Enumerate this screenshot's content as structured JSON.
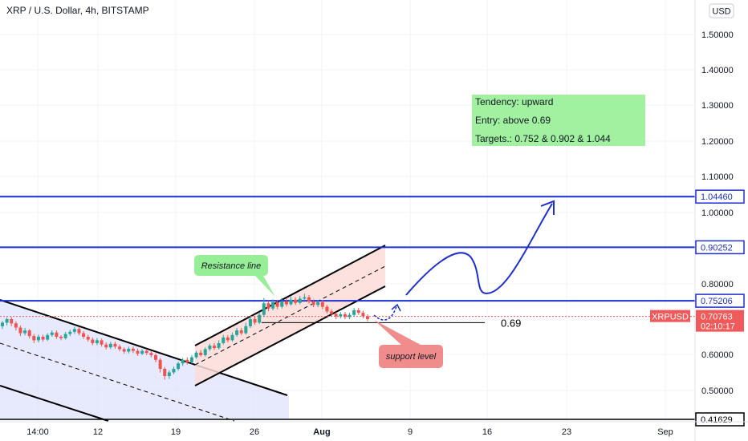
{
  "header": {
    "title": "XRP / U.S. Dollar, 4h, BITSTAMP",
    "currency_button": "USD"
  },
  "chart_data": {
    "type": "candlestick",
    "symbol": "XRPUSD",
    "y_ticks": [
      "1.50000",
      "1.40000",
      "1.30000",
      "1.20000",
      "1.10000",
      "1.00000",
      "0.80000",
      "0.60000",
      "0.50000"
    ],
    "y_tick_values": [
      1.5,
      1.4,
      1.3,
      1.2,
      1.1,
      1.0,
      0.8,
      0.6,
      0.5
    ],
    "ylim": [
      0.41,
      1.56
    ],
    "x_ticks": [
      "14:00",
      "12",
      "19",
      "26",
      "Aug",
      "9",
      "16",
      "23",
      "Sep"
    ],
    "price_levels": [
      {
        "label": "1.04460",
        "value": 1.0446,
        "color": "#1e2fd0"
      },
      {
        "label": "0.90252",
        "value": 0.90252,
        "color": "#1e2fd0"
      },
      {
        "label": "0.75206",
        "value": 0.75206,
        "color": "#1e2fd0"
      },
      {
        "label": "0.41629",
        "value": 0.41629,
        "color": "#000000"
      }
    ],
    "current_price": {
      "symbol": "XRPUSD",
      "price": "0.70763",
      "countdown": "02:10:17",
      "value": 0.70763,
      "color": "#f05a5a"
    },
    "support_value": {
      "label": "0.69",
      "value": 0.69
    },
    "candles": [
      [
        0.68,
        0.69,
        0.695,
        0.672
      ],
      [
        0.69,
        0.7,
        0.705,
        0.682
      ],
      [
        0.7,
        0.688,
        0.706,
        0.68
      ],
      [
        0.688,
        0.676,
        0.694,
        0.668
      ],
      [
        0.676,
        0.66,
        0.682,
        0.652
      ],
      [
        0.66,
        0.668,
        0.675,
        0.654
      ],
      [
        0.668,
        0.652,
        0.672,
        0.645
      ],
      [
        0.652,
        0.64,
        0.658,
        0.632
      ],
      [
        0.64,
        0.65,
        0.656,
        0.634
      ],
      [
        0.65,
        0.642,
        0.656,
        0.636
      ],
      [
        0.642,
        0.655,
        0.66,
        0.638
      ],
      [
        0.655,
        0.662,
        0.668,
        0.65
      ],
      [
        0.662,
        0.65,
        0.668,
        0.644
      ],
      [
        0.65,
        0.646,
        0.655,
        0.64
      ],
      [
        0.646,
        0.658,
        0.664,
        0.642
      ],
      [
        0.658,
        0.664,
        0.67,
        0.652
      ],
      [
        0.664,
        0.672,
        0.678,
        0.658
      ],
      [
        0.672,
        0.66,
        0.678,
        0.654
      ],
      [
        0.66,
        0.65,
        0.666,
        0.644
      ],
      [
        0.65,
        0.642,
        0.656,
        0.636
      ],
      [
        0.642,
        0.632,
        0.648,
        0.626
      ],
      [
        0.632,
        0.64,
        0.646,
        0.626
      ],
      [
        0.64,
        0.628,
        0.645,
        0.622
      ],
      [
        0.628,
        0.62,
        0.634,
        0.614
      ],
      [
        0.62,
        0.63,
        0.636,
        0.615
      ],
      [
        0.63,
        0.622,
        0.636,
        0.616
      ],
      [
        0.622,
        0.615,
        0.628,
        0.609
      ],
      [
        0.615,
        0.608,
        0.62,
        0.602
      ],
      [
        0.608,
        0.616,
        0.622,
        0.603
      ],
      [
        0.616,
        0.61,
        0.622,
        0.604
      ],
      [
        0.61,
        0.602,
        0.616,
        0.596
      ],
      [
        0.602,
        0.61,
        0.615,
        0.598
      ],
      [
        0.61,
        0.604,
        0.615,
        0.598
      ],
      [
        0.604,
        0.598,
        0.61,
        0.592
      ],
      [
        0.598,
        0.585,
        0.603,
        0.578
      ],
      [
        0.585,
        0.56,
        0.59,
        0.55
      ],
      [
        0.56,
        0.54,
        0.565,
        0.53
      ],
      [
        0.54,
        0.55,
        0.556,
        0.532
      ],
      [
        0.55,
        0.56,
        0.566,
        0.545
      ],
      [
        0.56,
        0.575,
        0.58,
        0.555
      ],
      [
        0.575,
        0.585,
        0.59,
        0.568
      ],
      [
        0.585,
        0.578,
        0.592,
        0.572
      ],
      [
        0.578,
        0.592,
        0.598,
        0.574
      ],
      [
        0.592,
        0.605,
        0.61,
        0.588
      ],
      [
        0.605,
        0.598,
        0.612,
        0.594
      ],
      [
        0.598,
        0.615,
        0.62,
        0.594
      ],
      [
        0.615,
        0.625,
        0.63,
        0.61
      ],
      [
        0.625,
        0.618,
        0.632,
        0.612
      ],
      [
        0.618,
        0.632,
        0.64,
        0.614
      ],
      [
        0.632,
        0.648,
        0.655,
        0.628
      ],
      [
        0.648,
        0.64,
        0.655,
        0.634
      ],
      [
        0.64,
        0.655,
        0.662,
        0.636
      ],
      [
        0.655,
        0.668,
        0.675,
        0.65
      ],
      [
        0.668,
        0.66,
        0.675,
        0.655
      ],
      [
        0.66,
        0.68,
        0.69,
        0.656
      ],
      [
        0.68,
        0.7,
        0.71,
        0.675
      ],
      [
        0.7,
        0.69,
        0.708,
        0.684
      ],
      [
        0.69,
        0.712,
        0.72,
        0.686
      ],
      [
        0.712,
        0.745,
        0.76,
        0.706
      ],
      [
        0.745,
        0.73,
        0.752,
        0.722
      ],
      [
        0.73,
        0.748,
        0.756,
        0.725
      ],
      [
        0.748,
        0.735,
        0.755,
        0.728
      ],
      [
        0.735,
        0.75,
        0.76,
        0.73
      ],
      [
        0.75,
        0.742,
        0.758,
        0.736
      ],
      [
        0.742,
        0.755,
        0.764,
        0.738
      ],
      [
        0.755,
        0.746,
        0.762,
        0.74
      ],
      [
        0.746,
        0.758,
        0.766,
        0.742
      ],
      [
        0.758,
        0.762,
        0.772,
        0.752
      ],
      [
        0.762,
        0.75,
        0.768,
        0.744
      ],
      [
        0.75,
        0.74,
        0.756,
        0.734
      ],
      [
        0.74,
        0.748,
        0.754,
        0.734
      ],
      [
        0.748,
        0.735,
        0.754,
        0.728
      ],
      [
        0.735,
        0.722,
        0.74,
        0.716
      ],
      [
        0.722,
        0.715,
        0.728,
        0.708
      ],
      [
        0.715,
        0.708,
        0.72,
        0.7
      ],
      [
        0.708,
        0.714,
        0.72,
        0.702
      ],
      [
        0.714,
        0.706,
        0.72,
        0.7
      ],
      [
        0.706,
        0.712,
        0.718,
        0.7
      ],
      [
        0.712,
        0.725,
        0.732,
        0.708
      ],
      [
        0.725,
        0.718,
        0.732,
        0.712
      ],
      [
        0.718,
        0.708,
        0.724,
        0.702
      ],
      [
        0.708,
        0.7,
        0.714,
        0.694
      ]
    ]
  },
  "annotations": {
    "info_box_lines": [
      "Tendency: upward",
      "Entry: above 0.69",
      "Targets.: 0.752 & 0.902 & 1.044"
    ],
    "resistance_label": "Resistance line",
    "support_label": "support level"
  },
  "colors": {
    "bull": "#26a69a",
    "bear": "#ef5350",
    "level_line": "#1e2fd0",
    "arrow": "#1e2fd0",
    "info_box": "#90ee90",
    "resistance_callout": "#90ee90",
    "support_callout": "#f08080"
  }
}
